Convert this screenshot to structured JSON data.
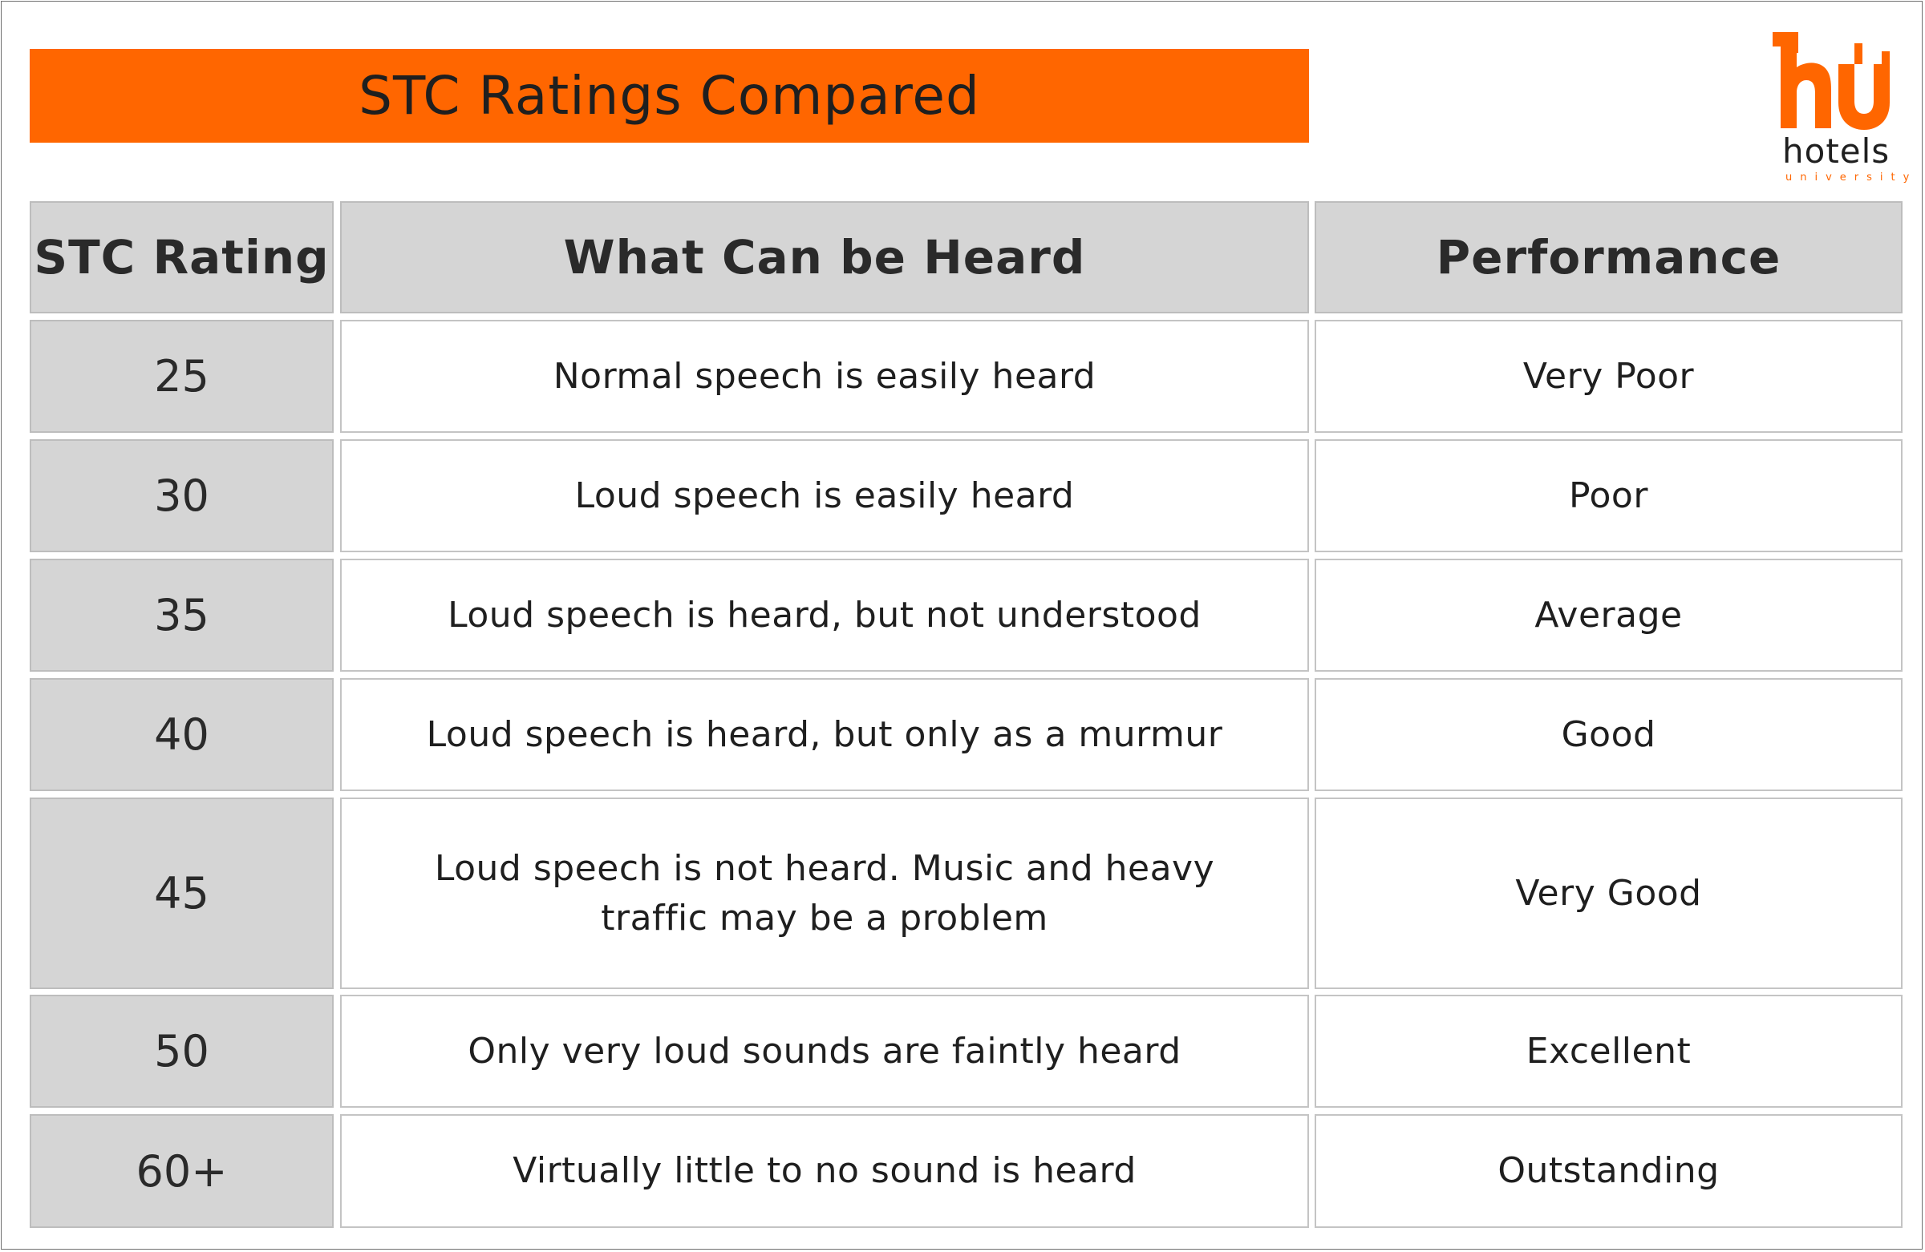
{
  "title": "STC Ratings Compared",
  "logo": {
    "word": "hotels",
    "sub": "university",
    "brand_color": "#ff6600"
  },
  "table": {
    "headers": [
      "STC Rating",
      "What Can be Heard",
      "Performance"
    ],
    "rows": [
      {
        "rating": "25",
        "heard": "Normal speech is easily heard",
        "performance": "Very Poor"
      },
      {
        "rating": "30",
        "heard": "Loud speech is easily heard",
        "performance": "Poor"
      },
      {
        "rating": "35",
        "heard": "Loud speech is heard, but not understood",
        "performance": "Average"
      },
      {
        "rating": "40",
        "heard": "Loud speech is heard, but only as a murmur",
        "performance": "Good"
      },
      {
        "rating": "45",
        "heard": "Loud speech is not heard. Music and heavy traffic may be a problem",
        "performance": "Very Good"
      },
      {
        "rating": "50",
        "heard": "Only very loud sounds are faintly heard",
        "performance": "Excellent"
      },
      {
        "rating": "60+",
        "heard": "Virtually little to no sound is heard",
        "performance": "Outstanding"
      }
    ]
  },
  "colors": {
    "accent": "#ff6600",
    "header_fill": "#d5d5d5",
    "border": "#c4c4c4"
  }
}
